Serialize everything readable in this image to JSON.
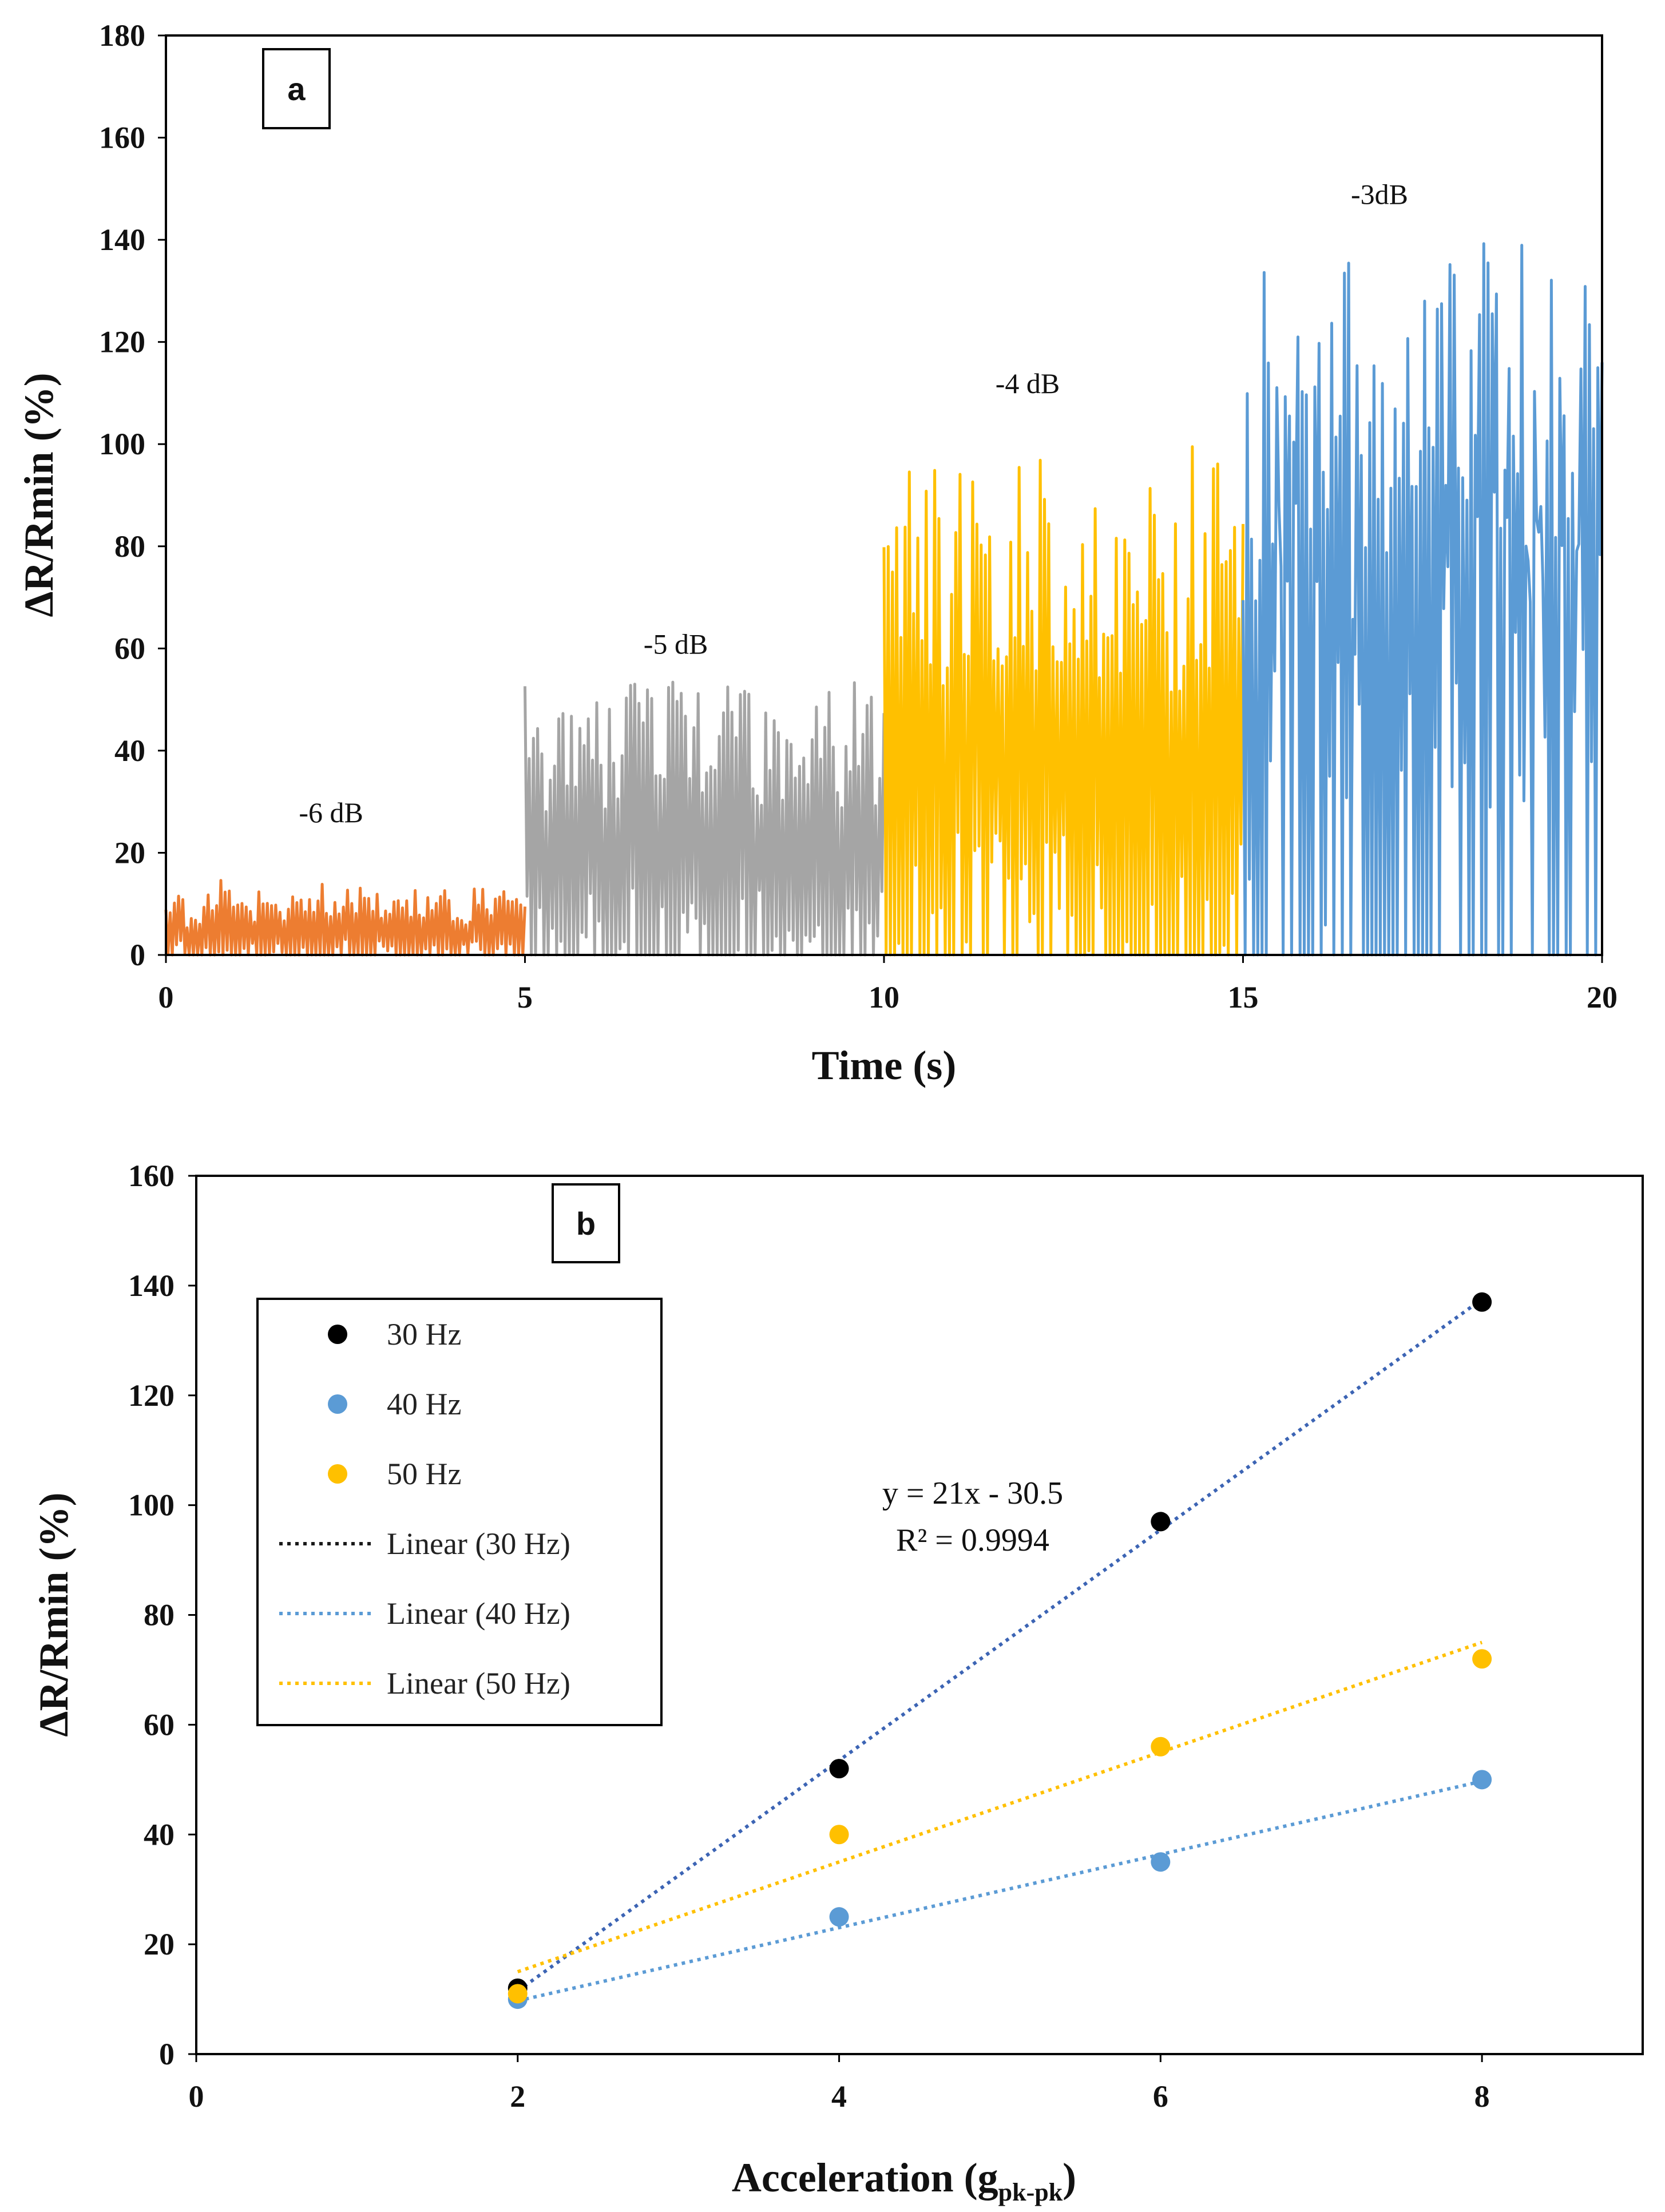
{
  "chart_data": [
    {
      "type": "line",
      "panel_label": "a",
      "xlabel": "Time (s)",
      "ylabel": "ΔR/Rmin (%)",
      "xlim": [
        0,
        20
      ],
      "ylim": [
        0,
        180
      ],
      "x_ticks": [
        "0",
        "5",
        "10",
        "15",
        "20"
      ],
      "y_ticks": [
        "0",
        "20",
        "40",
        "60",
        "80",
        "100",
        "120",
        "140",
        "160",
        "180"
      ],
      "grid": false,
      "series": [
        {
          "name": "-6 dB",
          "x_range": [
            0,
            5
          ],
          "peak_values": [
            12,
            9,
            13,
            15,
            11,
            14,
            10,
            13,
            14,
            12,
            14,
            13,
            11,
            13,
            12,
            14,
            10,
            13,
            14,
            12
          ],
          "color": "#ED7D31"
        },
        {
          "name": "-5 dB",
          "x_range": [
            5,
            10
          ],
          "peak_values": [
            53,
            48,
            52,
            54,
            50,
            53,
            55,
            51,
            54,
            52,
            49,
            53,
            55,
            52,
            54,
            50,
            53,
            48,
            54,
            52
          ],
          "color": "#A5A5A5"
        },
        {
          "name": "-4 dB",
          "x_range": [
            10,
            15
          ],
          "peak_values": [
            100,
            96,
            99,
            88,
            100,
            92,
            99,
            97,
            100,
            89,
            98,
            100,
            94,
            99,
            96,
            101,
            90,
            100,
            98,
            97
          ],
          "color": "#FFC000"
        },
        {
          "name": "-3dB",
          "x_range": [
            15,
            20
          ],
          "peak_values": [
            115,
            137,
            120,
            136,
            128,
            137,
            118,
            135,
            122,
            141,
            130,
            138,
            126,
            140,
            135,
            142,
            124,
            139,
            143,
            132
          ],
          "color": "#5B9BD5"
        }
      ],
      "annotations": [
        {
          "text": "-6 dB",
          "x": 2.3,
          "y": 26
        },
        {
          "text": "-5 dB",
          "x": 7.1,
          "y": 59
        },
        {
          "text": "-4 dB",
          "x": 12.0,
          "y": 110
        },
        {
          "text": "-3dB",
          "x": 16.9,
          "y": 147
        }
      ]
    },
    {
      "type": "scatter",
      "panel_label": "b",
      "xlabel": "Acceleration (g",
      "xlabel_subscript": "pk-pk",
      "xlabel_close": ")",
      "ylabel": "ΔR/Rmin (%)",
      "xlim": [
        0,
        9
      ],
      "ylim": [
        0,
        160
      ],
      "x_ticks": [
        "0",
        "2",
        "4",
        "6",
        "8"
      ],
      "y_ticks": [
        "0",
        "20",
        "40",
        "60",
        "80",
        "100",
        "120",
        "140",
        "160"
      ],
      "grid": false,
      "legend_position": "top-left",
      "series": [
        {
          "name": "30 Hz",
          "x": [
            2,
            4,
            6,
            8
          ],
          "y": [
            12,
            52,
            97,
            137
          ],
          "color": "#000000"
        },
        {
          "name": "40 Hz",
          "x": [
            2,
            4,
            6,
            8
          ],
          "y": [
            10,
            25,
            35,
            50
          ],
          "color": "#5B9BD5"
        },
        {
          "name": "50 Hz",
          "x": [
            2,
            4,
            6,
            8
          ],
          "y": [
            11,
            40,
            56,
            72
          ],
          "color": "#FFC000"
        }
      ],
      "trendlines": [
        {
          "name": "Linear (30 Hz)",
          "x": [
            2,
            8
          ],
          "y": [
            11.5,
            137.5
          ],
          "color": "#3C64B4",
          "legend_color": "#1a1a1a"
        },
        {
          "name": "Linear (40 Hz)",
          "x": [
            2,
            8
          ],
          "y": [
            9.7,
            49.7
          ],
          "color": "#5B9BD5",
          "legend_color": "#5B9BD5"
        },
        {
          "name": "Linear (50 Hz)",
          "x": [
            2,
            8
          ],
          "y": [
            15,
            75
          ],
          "color": "#FFC000",
          "legend_color": "#FFC000"
        }
      ],
      "fit_equation": "y = 21x - 30.5",
      "fit_r2": "R² = 0.9994"
    }
  ]
}
